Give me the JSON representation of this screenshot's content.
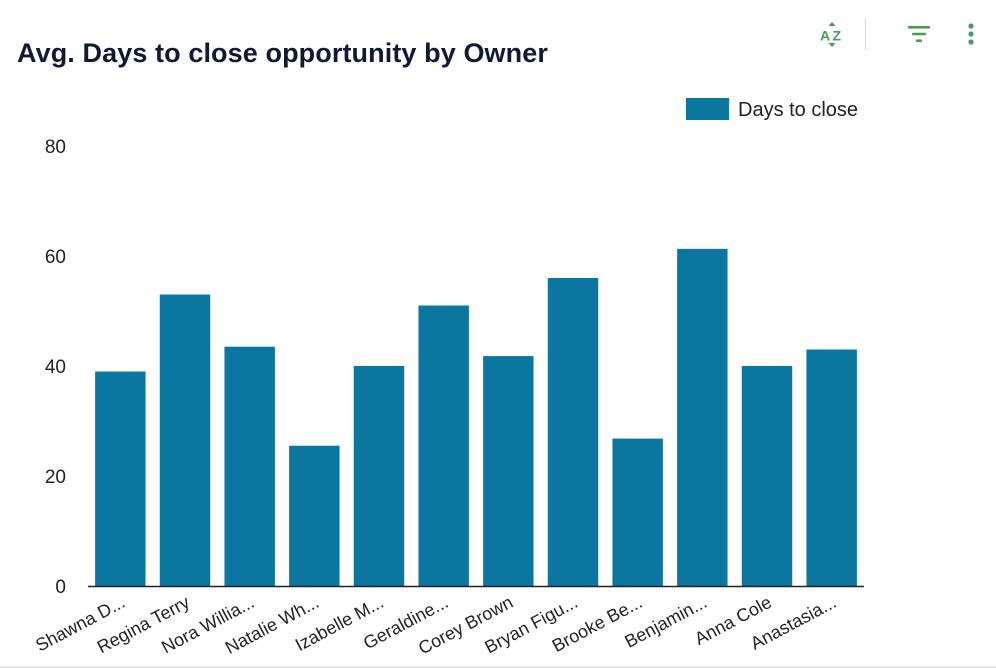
{
  "header": {
    "title": "Avg. Days to close opportunity by Owner"
  },
  "toolbar": {
    "sort_icon": "sort-az-icon",
    "filter_icon": "filter-icon",
    "more_icon": "more-vertical-icon",
    "accent_color": "#4c9a55"
  },
  "chart_data": {
    "type": "bar",
    "title": "Avg. Days to close opportunity by Owner",
    "xlabel": "",
    "ylabel": "",
    "ylim": [
      0,
      80
    ],
    "yticks": [
      "0",
      "20",
      "40",
      "60",
      "80"
    ],
    "grid": false,
    "legend_position": "top-right",
    "categories": [
      "Shawna D...",
      "Regina Terry",
      "Nora Willia...",
      "Natalie Wh...",
      "Izabelle M...",
      "Geraldine...",
      "Corey Brown",
      "Bryan Figu...",
      "Brooke Be...",
      "Benjamin...",
      "Anna Cole",
      "Anastasia..."
    ],
    "series": [
      {
        "name": "Days to close",
        "color": "#0b76a0",
        "values": [
          39,
          53,
          43.5,
          25.5,
          40,
          51,
          41.8,
          56,
          26.8,
          61.3,
          40,
          43
        ]
      }
    ]
  }
}
